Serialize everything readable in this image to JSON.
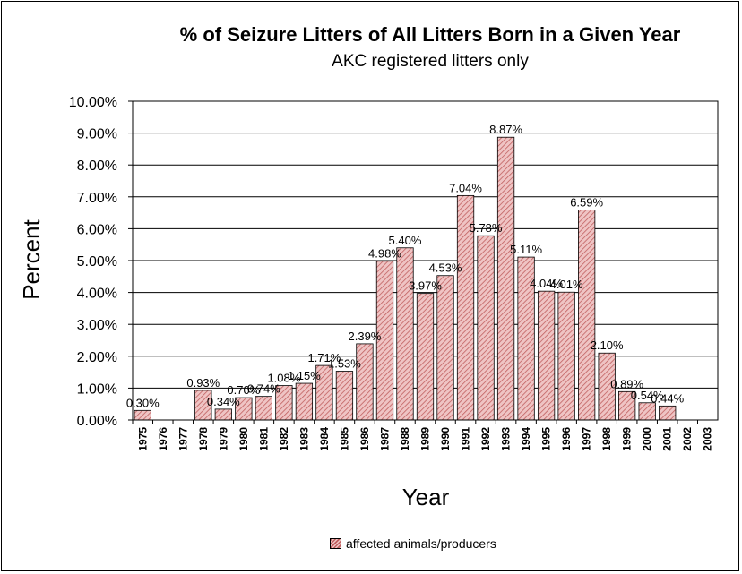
{
  "chart_data": {
    "type": "bar",
    "title": "% of Seizure Litters of All Litters Born in a Given Year",
    "subtitle": "AKC registered litters only",
    "xlabel": "Year",
    "ylabel": "Percent",
    "ylim": [
      0,
      10
    ],
    "yticks": [
      "0.00%",
      "1.00%",
      "2.00%",
      "3.00%",
      "4.00%",
      "5.00%",
      "6.00%",
      "7.00%",
      "8.00%",
      "9.00%",
      "10.00%"
    ],
    "categories": [
      "1975",
      "1976",
      "1977",
      "1978",
      "1979",
      "1980",
      "1981",
      "1982",
      "1983",
      "1984",
      "1985",
      "1986",
      "1987",
      "1988",
      "1989",
      "1990",
      "1991",
      "1992",
      "1993",
      "1994",
      "1995",
      "1996",
      "1997",
      "1998",
      "1999",
      "2000",
      "2001",
      "2002",
      "2003"
    ],
    "series": [
      {
        "name": "affected animals/producers",
        "values": [
          0.3,
          null,
          null,
          0.93,
          0.34,
          0.7,
          0.74,
          1.08,
          1.15,
          1.71,
          1.53,
          2.39,
          4.98,
          5.4,
          3.97,
          4.53,
          7.04,
          5.78,
          8.87,
          5.11,
          4.04,
          4.01,
          6.59,
          2.1,
          0.89,
          0.54,
          0.44,
          null,
          null
        ],
        "labels": [
          "0.30%",
          "",
          "",
          "0.93%",
          "0.34%",
          "0.70%",
          "0.74%",
          "1.08%",
          "1.15%",
          "1.71%",
          "1.53%",
          "2.39%",
          "4.98%",
          "5.40%",
          "3.97%",
          "4.53%",
          "7.04%",
          "5.78%",
          "8.87%",
          "5.11%",
          "4.04%",
          "4.01%",
          "6.59%",
          "2.10%",
          "0.89%",
          "0.54%",
          "0.44%",
          "",
          ""
        ]
      }
    ],
    "grid": "horizontal",
    "legend_position": "bottom",
    "colors": {
      "bar_fill": "#efc4c4",
      "bar_hatch": "#c06060",
      "bar_border": "#000000"
    }
  }
}
